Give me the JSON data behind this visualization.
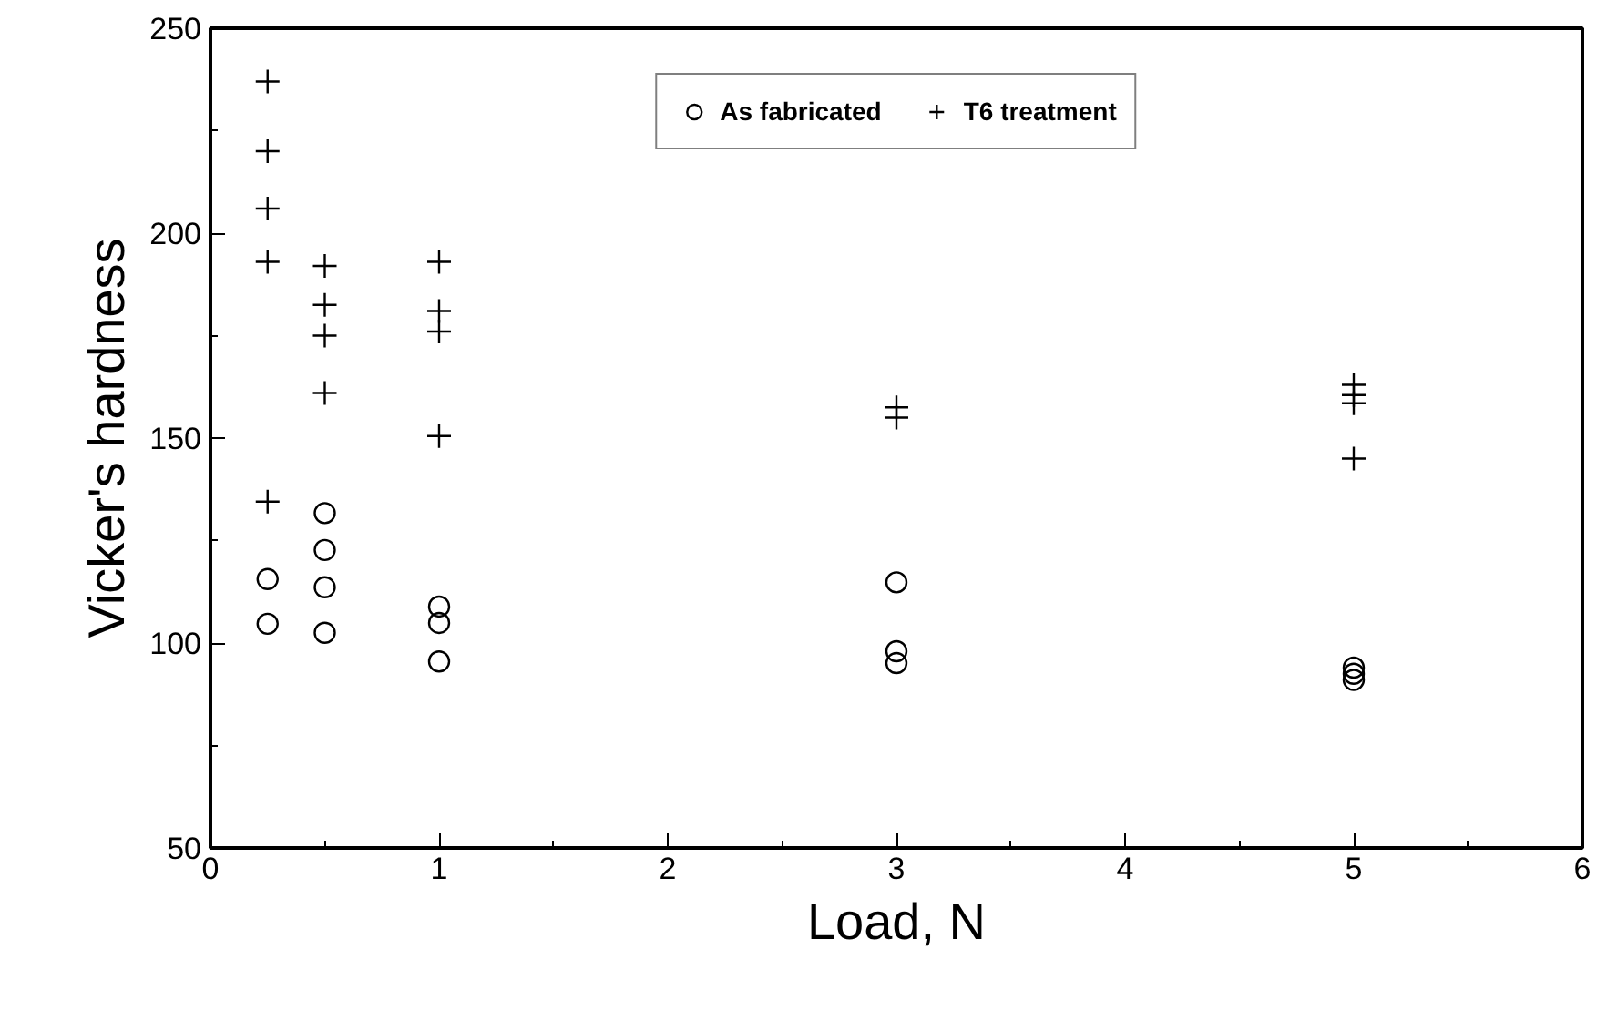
{
  "chart_data": {
    "type": "scatter",
    "xlabel": "Load, N",
    "ylabel": "Vicker's hardness",
    "xlim": [
      0,
      6
    ],
    "xticks": [
      0,
      1,
      2,
      3,
      4,
      5,
      6
    ],
    "ylim": [
      50,
      250
    ],
    "yticks": [
      50,
      100,
      150,
      200,
      250
    ],
    "grid": false,
    "legend": "top",
    "series": [
      {
        "name": "As fabricated",
        "color": "#000000",
        "marker": "circle",
        "x": [
          0.25,
          0.25,
          0.5,
          0.5,
          0.5,
          0.5,
          1,
          1,
          1,
          3,
          3,
          3,
          5,
          5,
          5
        ],
        "values": [
          115.6,
          104.7,
          131.7,
          122.7,
          113.6,
          102.5,
          108.9,
          104.9,
          95.5,
          114.8,
          98,
          95.1,
          94,
          92.5,
          91
        ]
      },
      {
        "name": "T6 treatment",
        "color": "#000000",
        "marker": "cross",
        "x": [
          0.25,
          0.25,
          0.25,
          0.25,
          0.25,
          0.5,
          0.5,
          0.5,
          0.5,
          1,
          1,
          1,
          1,
          3,
          3,
          5,
          5,
          5,
          5
        ],
        "values": [
          237,
          220,
          206,
          193,
          134.5,
          192,
          182.5,
          175,
          161,
          193,
          181,
          176,
          150.5,
          157.5,
          155,
          163,
          160.5,
          158.5,
          145
        ]
      }
    ]
  }
}
